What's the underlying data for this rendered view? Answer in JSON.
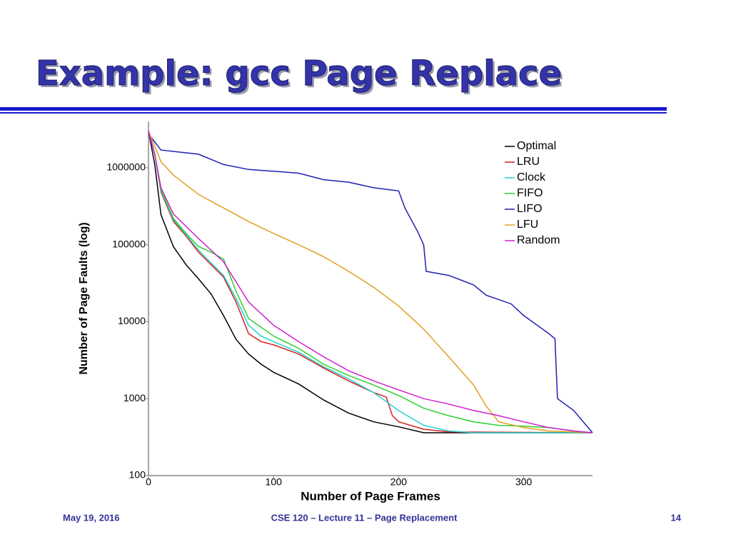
{
  "slide": {
    "title": "Example: gcc Page Replace",
    "footer_left": "May 19, 2016",
    "footer_center": "CSE 120 – Lecture 11 – Page Replacement",
    "footer_right": "14"
  },
  "chart_data": {
    "type": "line",
    "log_y": true,
    "legend": "upper-right",
    "xlabel": "Number of Page Frames",
    "ylabel": "Number of Page Faults (log)",
    "xlim": [
      0,
      355
    ],
    "xticks": [
      0,
      100,
      200,
      300
    ],
    "ylim": [
      100,
      4000000
    ],
    "yticks": [
      100,
      1000,
      10000,
      100000,
      1000000
    ],
    "series": [
      {
        "name": "Optimal",
        "color": "#000000",
        "x": [
          0,
          5,
          10,
          20,
          30,
          40,
          50,
          60,
          70,
          80,
          90,
          100,
          120,
          140,
          160,
          180,
          200,
          220,
          240,
          355
        ],
        "values": [
          3000000,
          1100000,
          245000,
          94000,
          55000,
          36000,
          23000,
          12000,
          5900,
          3800,
          2800,
          2200,
          1550,
          960,
          650,
          500,
          430,
          360,
          360,
          360
        ]
      },
      {
        "name": "LRU",
        "color": "#d62020",
        "x": [
          0,
          5,
          10,
          20,
          30,
          40,
          50,
          60,
          70,
          80,
          90,
          100,
          120,
          140,
          160,
          180,
          190,
          195,
          200,
          220,
          240,
          355
        ],
        "values": [
          3000000,
          1500000,
          480000,
          200000,
          130000,
          80000,
          55000,
          38000,
          18000,
          7000,
          5500,
          5000,
          3800,
          2500,
          1700,
          1200,
          1050,
          600,
          500,
          400,
          370,
          360
        ]
      },
      {
        "name": "Clock",
        "color": "#20d0d0",
        "x": [
          0,
          5,
          10,
          20,
          30,
          40,
          50,
          60,
          70,
          80,
          90,
          100,
          120,
          140,
          160,
          180,
          200,
          220,
          240,
          260,
          355
        ],
        "values": [
          3000000,
          1500000,
          500000,
          210000,
          135000,
          85000,
          58000,
          40000,
          20000,
          9000,
          6500,
          5500,
          4000,
          2600,
          1800,
          1200,
          700,
          450,
          380,
          360,
          360
        ]
      },
      {
        "name": "FIFO",
        "color": "#30d030",
        "x": [
          0,
          5,
          10,
          20,
          30,
          40,
          50,
          60,
          70,
          80,
          100,
          120,
          140,
          160,
          180,
          200,
          220,
          240,
          260,
          280,
          300,
          320,
          340,
          355
        ],
        "values": [
          3000000,
          1500000,
          520000,
          220000,
          140000,
          95000,
          80000,
          65000,
          25000,
          11000,
          6500,
          4500,
          2800,
          2000,
          1500,
          1100,
          750,
          600,
          500,
          450,
          440,
          420,
          380,
          360
        ]
      },
      {
        "name": "LIFO",
        "color": "#2020b0",
        "x": [
          2,
          10,
          40,
          60,
          80,
          100,
          120,
          140,
          160,
          180,
          200,
          205,
          215,
          220,
          222,
          240,
          260,
          270,
          290,
          300,
          320,
          325,
          327,
          340,
          350,
          355
        ],
        "values": [
          2500000,
          1700000,
          1500000,
          1100000,
          950000,
          900000,
          850000,
          700000,
          650000,
          550000,
          500000,
          300000,
          150000,
          100000,
          45000,
          40000,
          30000,
          22000,
          17000,
          12000,
          7000,
          6000,
          1000,
          700,
          450,
          360
        ]
      },
      {
        "name": "LFU",
        "color": "#e0a020",
        "x": [
          0,
          10,
          20,
          40,
          60,
          80,
          100,
          120,
          140,
          160,
          180,
          200,
          220,
          240,
          260,
          270,
          280,
          300,
          320,
          355
        ],
        "values": [
          3000000,
          1200000,
          800000,
          450000,
          300000,
          200000,
          140000,
          100000,
          70000,
          45000,
          28000,
          16000,
          8000,
          3500,
          1500,
          800,
          500,
          420,
          380,
          360
        ]
      },
      {
        "name": "Random",
        "color": "#d020d0",
        "x": [
          0,
          5,
          10,
          20,
          40,
          60,
          80,
          100,
          120,
          140,
          160,
          180,
          200,
          220,
          240,
          260,
          280,
          300,
          320,
          340,
          355
        ],
        "values": [
          3000000,
          1500000,
          550000,
          250000,
          120000,
          60000,
          18000,
          9000,
          5500,
          3500,
          2300,
          1700,
          1300,
          1000,
          850,
          700,
          600,
          500,
          420,
          380,
          360
        ]
      }
    ]
  }
}
